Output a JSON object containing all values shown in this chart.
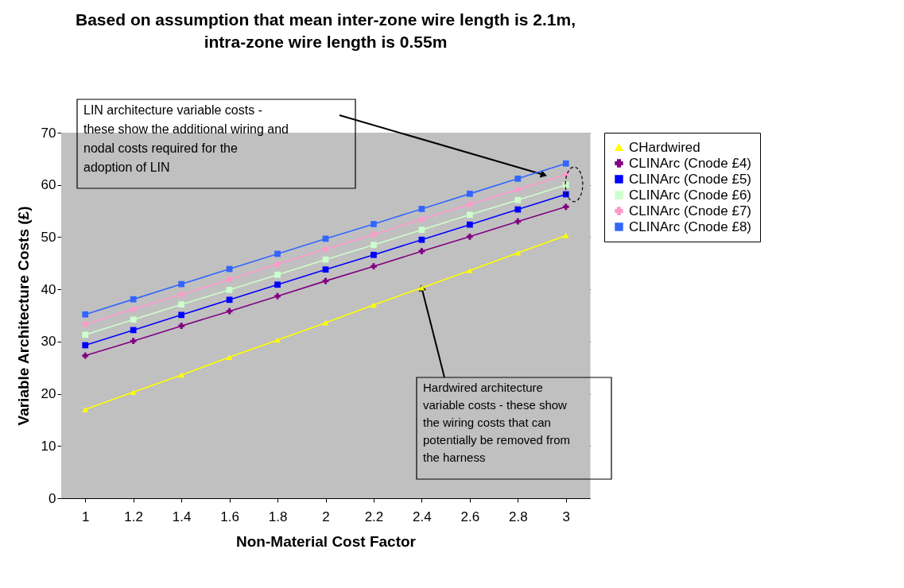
{
  "chart_data": {
    "type": "line",
    "title": "Based on assumption that mean inter-zone wire length is 2.1m,\nintra-zone wire length is 0.55m",
    "xlabel": "Non-Material Cost Factor",
    "ylabel": "Variable Architecture Costs (£)",
    "categories": [
      "1",
      "1.2",
      "1.4",
      "1.6",
      "1.8",
      "2",
      "2.2",
      "2.4",
      "2.6",
      "2.8",
      "3"
    ],
    "series": [
      {
        "name": "CHardwired",
        "color": "#ffff00",
        "marker": "triangle",
        "values": [
          17,
          20.3,
          23.6,
          27,
          30.3,
          33.6,
          37,
          40.3,
          43.6,
          47,
          50.3
        ]
      },
      {
        "name": "CLINArc (Cnode £4)",
        "color": "#800080",
        "marker": "cross",
        "values": [
          27.3,
          30.1,
          33,
          35.8,
          38.7,
          41.6,
          44.4,
          47.3,
          50.1,
          53,
          55.8
        ]
      },
      {
        "name": "CLINArc (Cnode £5)",
        "color": "#0000ff",
        "marker": "square",
        "values": [
          29.3,
          32.2,
          35.1,
          38,
          40.9,
          43.8,
          46.6,
          49.5,
          52.4,
          55.3,
          58.2
        ]
      },
      {
        "name": "CLINArc (Cnode £6)",
        "color": "#ccffcc",
        "marker": "square",
        "values": [
          31.3,
          34.2,
          37.1,
          39.9,
          42.8,
          45.7,
          48.5,
          51.4,
          54.3,
          57.1,
          60
        ]
      },
      {
        "name": "CLINArc (Cnode £7)",
        "color": "#ff99cc",
        "marker": "cross",
        "values": [
          33.3,
          36.2,
          39,
          41.9,
          44.8,
          47.7,
          50.5,
          53.4,
          56.3,
          59.1,
          62
        ]
      },
      {
        "name": "CLINArc (Cnode £8)",
        "color": "#3366ff",
        "marker": "square",
        "values": [
          35.2,
          38.1,
          41,
          43.9,
          46.8,
          49.7,
          52.5,
          55.4,
          58.3,
          61.2,
          64.1
        ]
      }
    ],
    "ylim": [
      0,
      70
    ],
    "yticks": [
      0,
      10,
      20,
      30,
      40,
      50,
      60,
      70
    ],
    "grid": "y",
    "legend": "right",
    "annotations": [
      "LIN architecture variable costs - these show the additional wiring and nodal costs required for the adoption of LIN",
      {
        "text": "Hardwired architecture variable costs - these show the wiring costs that can potentially be removed from the harness",
        "x": "2.4",
        "y": 40.3
      }
    ]
  }
}
